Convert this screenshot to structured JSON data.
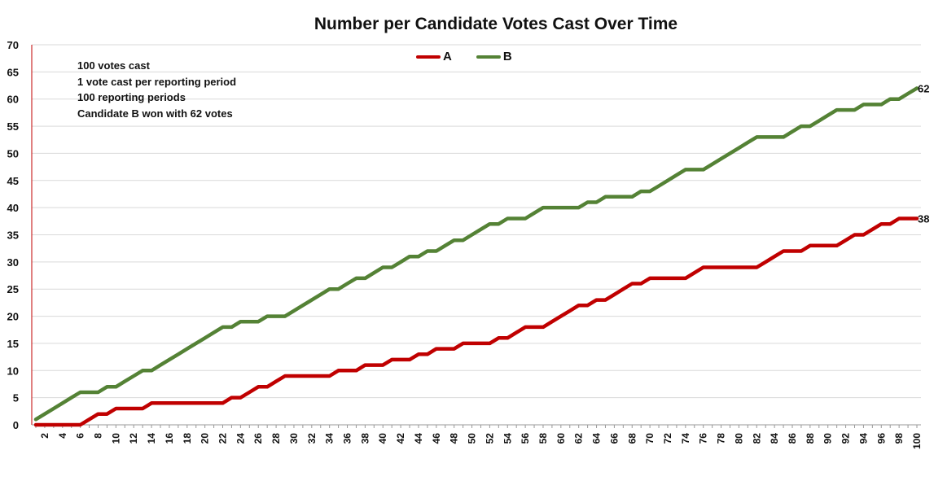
{
  "chart_data": {
    "type": "line",
    "title": "Number per Candidate Votes Cast Over Time",
    "xlabel": "",
    "ylabel": "",
    "ylim": [
      0,
      70
    ],
    "yticks": [
      0,
      5,
      10,
      15,
      20,
      25,
      30,
      35,
      40,
      45,
      50,
      55,
      60,
      65,
      70
    ],
    "xlim": [
      1,
      100
    ],
    "xtick_labels": [
      2,
      4,
      6,
      8,
      10,
      12,
      14,
      16,
      18,
      20,
      22,
      24,
      26,
      28,
      30,
      32,
      34,
      36,
      38,
      40,
      42,
      44,
      46,
      48,
      50,
      52,
      54,
      56,
      58,
      60,
      62,
      64,
      66,
      68,
      70,
      72,
      74,
      76,
      78,
      80,
      82,
      84,
      86,
      88,
      90,
      92,
      94,
      96,
      98,
      100
    ],
    "grid": "horizontal",
    "legend_position": "top-center",
    "x": [
      1,
      2,
      3,
      4,
      5,
      6,
      7,
      8,
      9,
      10,
      11,
      12,
      13,
      14,
      15,
      16,
      17,
      18,
      19,
      20,
      21,
      22,
      23,
      24,
      25,
      26,
      27,
      28,
      29,
      30,
      31,
      32,
      33,
      34,
      35,
      36,
      37,
      38,
      39,
      40,
      41,
      42,
      43,
      44,
      45,
      46,
      47,
      48,
      49,
      50,
      51,
      52,
      53,
      54,
      55,
      56,
      57,
      58,
      59,
      60,
      61,
      62,
      63,
      64,
      65,
      66,
      67,
      68,
      69,
      70,
      71,
      72,
      73,
      74,
      75,
      76,
      77,
      78,
      79,
      80,
      81,
      82,
      83,
      84,
      85,
      86,
      87,
      88,
      89,
      90,
      91,
      92,
      93,
      94,
      95,
      96,
      97,
      98,
      99,
      100
    ],
    "series": [
      {
        "name": "A",
        "color": "#c00000",
        "end_label": "38",
        "values": [
          0,
          0,
          0,
          0,
          0,
          0,
          1,
          2,
          2,
          3,
          3,
          3,
          3,
          4,
          4,
          4,
          4,
          4,
          4,
          4,
          4,
          4,
          5,
          5,
          6,
          7,
          7,
          8,
          9,
          9,
          9,
          9,
          9,
          9,
          10,
          10,
          10,
          11,
          11,
          11,
          12,
          12,
          12,
          13,
          13,
          14,
          14,
          14,
          15,
          15,
          15,
          15,
          16,
          16,
          17,
          18,
          18,
          18,
          19,
          20,
          21,
          22,
          22,
          23,
          23,
          24,
          25,
          26,
          26,
          27,
          27,
          27,
          27,
          27,
          28,
          29,
          29,
          29,
          29,
          29,
          29,
          29,
          30,
          31,
          32,
          32,
          32,
          33,
          33,
          33,
          33,
          34,
          35,
          35,
          36,
          37,
          37,
          38,
          38,
          38
        ]
      },
      {
        "name": "B",
        "color": "#548235",
        "end_label": "62",
        "values": [
          1,
          2,
          3,
          4,
          5,
          6,
          6,
          6,
          7,
          7,
          8,
          9,
          10,
          10,
          11,
          12,
          13,
          14,
          15,
          16,
          17,
          18,
          18,
          19,
          19,
          19,
          20,
          20,
          20,
          21,
          22,
          23,
          24,
          25,
          25,
          26,
          27,
          27,
          28,
          29,
          29,
          30,
          31,
          31,
          32,
          32,
          33,
          34,
          34,
          35,
          36,
          37,
          37,
          38,
          38,
          38,
          39,
          40,
          40,
          40,
          40,
          40,
          41,
          41,
          42,
          42,
          42,
          42,
          43,
          43,
          44,
          45,
          46,
          47,
          47,
          47,
          48,
          49,
          50,
          51,
          52,
          53,
          53,
          53,
          53,
          54,
          55,
          55,
          56,
          57,
          58,
          58,
          58,
          59,
          59,
          59,
          60,
          60,
          61,
          62
        ]
      }
    ]
  },
  "note": {
    "lines": [
      "100 votes cast",
      "1 vote cast per reporting period",
      "100 reporting periods",
      "Candidate B won with 62 votes"
    ]
  }
}
